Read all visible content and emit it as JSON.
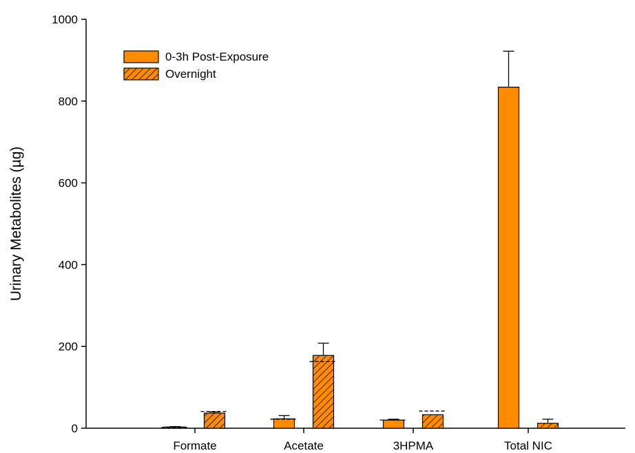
{
  "chart_data": {
    "type": "bar",
    "ylabel": "Urinary Metabolites (µg)",
    "xlabel": "",
    "ylim": [
      0,
      1000
    ],
    "yticks": [
      0,
      200,
      400,
      600,
      800,
      1000
    ],
    "categories": [
      "Formate",
      "Acetate",
      "3HPMA",
      "Total NIC"
    ],
    "legend_position": "top-left",
    "series": [
      {
        "name": "0-3h Post-Exposure",
        "pattern": "solid",
        "color": "#ff8c00",
        "values": [
          3,
          23,
          20,
          834
        ],
        "errors": [
          1,
          8,
          2,
          88
        ],
        "medians": [
          2,
          22,
          20,
          null
        ]
      },
      {
        "name": "Overnight",
        "pattern": "hatched",
        "color": "#ff8c00",
        "values": [
          37,
          178,
          33,
          12
        ],
        "errors": [
          3,
          30,
          0,
          10
        ],
        "medians": [
          41,
          163,
          42,
          null
        ]
      }
    ]
  }
}
